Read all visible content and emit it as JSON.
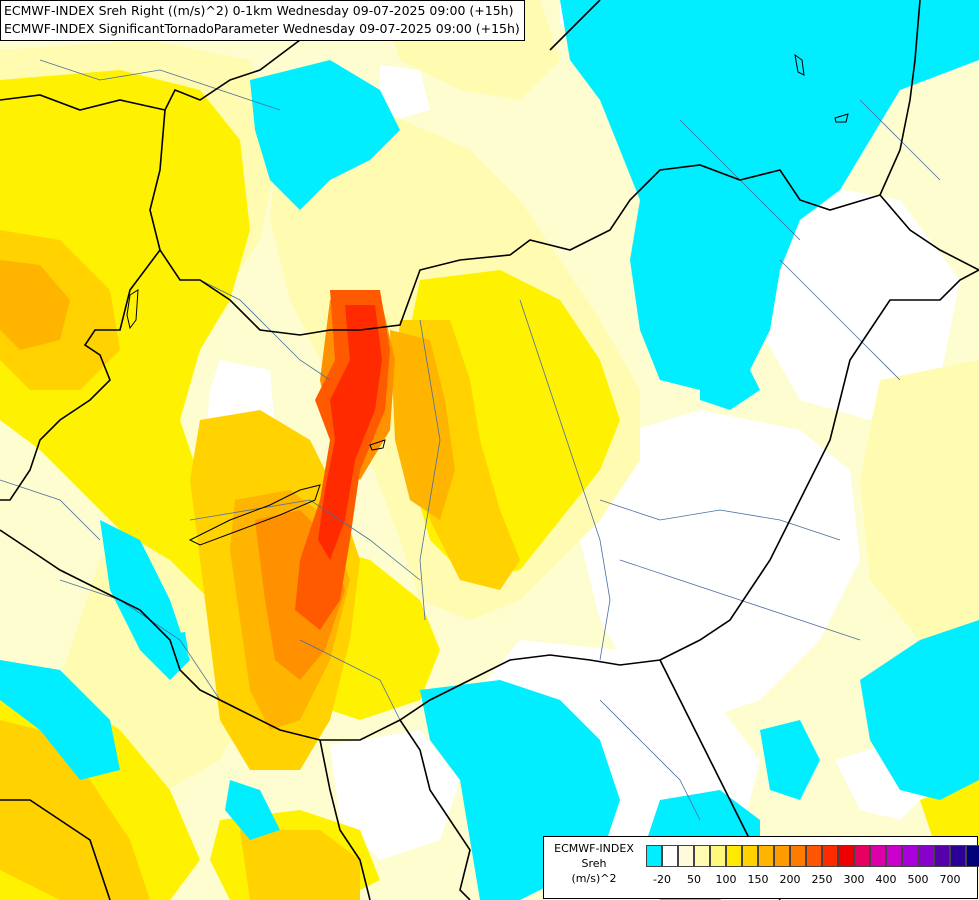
{
  "header": {
    "line1": "ECMWF-INDEX Sreh Right ((m/s)^2) 0-1km Wednesday 09-07-2025 09:00 (+15h)",
    "line2": "ECMWF-INDEX SignificantTornadoParameter Wednesday 09-07-2025 09:00 (+15h)"
  },
  "legend": {
    "title_line1": "ECMWF-INDEX",
    "title_line2": "Sreh",
    "title_line3": "(m/s)^2",
    "colors": [
      "#00eeff",
      "#ffffff",
      "#fffadb",
      "#fffbb0",
      "#fff87a",
      "#ffe900",
      "#ffd200",
      "#ffb400",
      "#ff9b00",
      "#ff7b00",
      "#ff5500",
      "#ff2b00",
      "#ee0000",
      "#e60060",
      "#dd00aa",
      "#cc00cc",
      "#aa00dd",
      "#8800cc",
      "#5500aa",
      "#2a0099",
      "#00007a"
    ],
    "ticks": [
      "-20",
      "50",
      "100",
      "150",
      "200",
      "250",
      "300",
      "400",
      "500",
      "700"
    ]
  },
  "map_style": {
    "cyan": "#00eeff",
    "white": "#ffffff",
    "pale_yellow": "#fdfdd0",
    "light_yellow": "#fffbb0",
    "yellow": "#fff200",
    "gold": "#ffd200",
    "orange": "#ffb400",
    "dark_orange": "#ff9000",
    "red_orange": "#ff5a00",
    "red": "#ff2a00",
    "border_color": "#000000",
    "river_color": "#4a6ea0"
  }
}
